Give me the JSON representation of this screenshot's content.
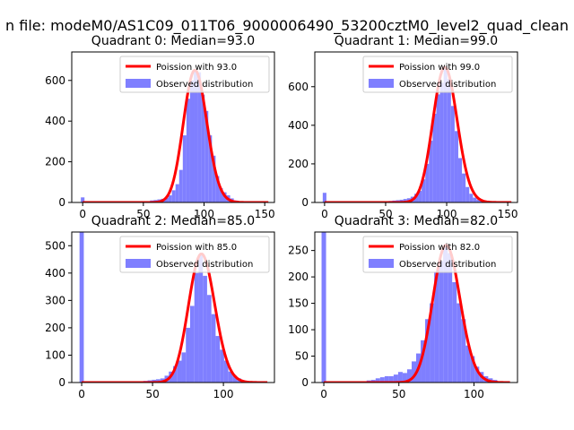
{
  "figure": {
    "suptitle": "n file: modeM0/AS1C09_011T06_9000006490_53200cztM0_level2_quad_clean"
  },
  "colors": {
    "poisson_line": "#ff0000",
    "histogram": "#7f7fff",
    "axis": "#000000",
    "background": "#ffffff"
  },
  "chart_data": [
    {
      "type": "histogram",
      "title": "Quadrant 0: Median=93.0",
      "median": 93.0,
      "xlim": [
        -9,
        158
      ],
      "ylim": [
        0,
        740
      ],
      "xticks": [
        0,
        50,
        100,
        150
      ],
      "yticks": [
        0,
        200,
        400,
        600
      ],
      "grid": false,
      "legend_position": "top-right",
      "legend": [
        {
          "label": "Poission with 93.0",
          "kind": "line"
        },
        {
          "label": "Observed distribution",
          "kind": "patch"
        }
      ],
      "spike": {
        "x": 0,
        "count": 25
      },
      "bin_width": 3,
      "bins": [
        {
          "x": 54,
          "count": 5
        },
        {
          "x": 57,
          "count": 10
        },
        {
          "x": 60,
          "count": 12
        },
        {
          "x": 63,
          "count": 15
        },
        {
          "x": 66,
          "count": 18
        },
        {
          "x": 69,
          "count": 22
        },
        {
          "x": 72,
          "count": 35
        },
        {
          "x": 75,
          "count": 60
        },
        {
          "x": 78,
          "count": 90
        },
        {
          "x": 81,
          "count": 160
        },
        {
          "x": 84,
          "count": 330
        },
        {
          "x": 87,
          "count": 510
        },
        {
          "x": 90,
          "count": 600
        },
        {
          "x": 93,
          "count": 650
        },
        {
          "x": 96,
          "count": 640
        },
        {
          "x": 99,
          "count": 530
        },
        {
          "x": 102,
          "count": 450
        },
        {
          "x": 105,
          "count": 330
        },
        {
          "x": 108,
          "count": 230
        },
        {
          "x": 111,
          "count": 130
        },
        {
          "x": 114,
          "count": 70
        },
        {
          "x": 117,
          "count": 50
        },
        {
          "x": 120,
          "count": 35
        },
        {
          "x": 123,
          "count": 20
        },
        {
          "x": 126,
          "count": 10
        },
        {
          "x": 129,
          "count": 6
        }
      ]
    },
    {
      "type": "histogram",
      "title": "Quadrant 1: Median=99.0",
      "median": 99.0,
      "xlim": [
        -8,
        158
      ],
      "ylim": [
        0,
        780
      ],
      "xticks": [
        0,
        50,
        100,
        150
      ],
      "yticks": [
        0,
        200,
        400,
        600
      ],
      "grid": false,
      "legend_position": "top-right",
      "legend": [
        {
          "label": "Poission with 99.0",
          "kind": "line"
        },
        {
          "label": "Observed distribution",
          "kind": "patch"
        }
      ],
      "spike": {
        "x": 0,
        "count": 50
      },
      "bin_width": 3,
      "bins": [
        {
          "x": 48,
          "count": 5
        },
        {
          "x": 51,
          "count": 6
        },
        {
          "x": 54,
          "count": 8
        },
        {
          "x": 57,
          "count": 10
        },
        {
          "x": 60,
          "count": 12
        },
        {
          "x": 63,
          "count": 14
        },
        {
          "x": 66,
          "count": 18
        },
        {
          "x": 69,
          "count": 22
        },
        {
          "x": 72,
          "count": 30
        },
        {
          "x": 75,
          "count": 45
        },
        {
          "x": 78,
          "count": 60
        },
        {
          "x": 81,
          "count": 120
        },
        {
          "x": 84,
          "count": 200
        },
        {
          "x": 87,
          "count": 320
        },
        {
          "x": 90,
          "count": 460
        },
        {
          "x": 93,
          "count": 560
        },
        {
          "x": 96,
          "count": 620
        },
        {
          "x": 99,
          "count": 700
        },
        {
          "x": 102,
          "count": 640
        },
        {
          "x": 105,
          "count": 500
        },
        {
          "x": 108,
          "count": 370
        },
        {
          "x": 111,
          "count": 230
        },
        {
          "x": 114,
          "count": 150
        },
        {
          "x": 117,
          "count": 80
        },
        {
          "x": 120,
          "count": 45
        },
        {
          "x": 123,
          "count": 25
        },
        {
          "x": 126,
          "count": 15
        },
        {
          "x": 129,
          "count": 10
        },
        {
          "x": 132,
          "count": 6
        }
      ]
    },
    {
      "type": "histogram",
      "title": "Quadrant 2: Median=85.0",
      "median": 85.0,
      "xlim": [
        -7,
        136
      ],
      "ylim": [
        0,
        550
      ],
      "xticks": [
        0,
        50,
        100
      ],
      "yticks": [
        0,
        100,
        200,
        300,
        400,
        500
      ],
      "grid": false,
      "legend_position": "top-right",
      "legend": [
        {
          "label": "Poission with 85.0",
          "kind": "line"
        },
        {
          "label": "Observed distribution",
          "kind": "patch"
        }
      ],
      "spike": {
        "x": 0,
        "count": 550
      },
      "bin_width": 3,
      "bins": [
        {
          "x": 45,
          "count": 6
        },
        {
          "x": 48,
          "count": 8
        },
        {
          "x": 51,
          "count": 10
        },
        {
          "x": 54,
          "count": 12
        },
        {
          "x": 57,
          "count": 15
        },
        {
          "x": 60,
          "count": 25
        },
        {
          "x": 63,
          "count": 40
        },
        {
          "x": 66,
          "count": 60
        },
        {
          "x": 69,
          "count": 80
        },
        {
          "x": 72,
          "count": 110
        },
        {
          "x": 75,
          "count": 200
        },
        {
          "x": 78,
          "count": 280
        },
        {
          "x": 81,
          "count": 400
        },
        {
          "x": 84,
          "count": 470
        },
        {
          "x": 87,
          "count": 390
        },
        {
          "x": 90,
          "count": 320
        },
        {
          "x": 93,
          "count": 250
        },
        {
          "x": 96,
          "count": 170
        },
        {
          "x": 99,
          "count": 120
        },
        {
          "x": 102,
          "count": 80
        },
        {
          "x": 105,
          "count": 40
        },
        {
          "x": 108,
          "count": 25
        },
        {
          "x": 111,
          "count": 15
        },
        {
          "x": 114,
          "count": 8
        }
      ]
    },
    {
      "type": "histogram",
      "title": "Quadrant 3: Median=82.0",
      "median": 82.0,
      "xlim": [
        -6,
        129
      ],
      "ylim": [
        0,
        285
      ],
      "xticks": [
        0,
        50,
        100
      ],
      "yticks": [
        0,
        50,
        100,
        150,
        200,
        250
      ],
      "grid": false,
      "legend_position": "top-right",
      "legend": [
        {
          "label": "Poission with 82.0",
          "kind": "line"
        },
        {
          "label": "Observed distribution",
          "kind": "patch"
        }
      ],
      "spike": {
        "x": 0,
        "count": 285
      },
      "bin_width": 3,
      "bins": [
        {
          "x": 30,
          "count": 4
        },
        {
          "x": 33,
          "count": 5
        },
        {
          "x": 36,
          "count": 8
        },
        {
          "x": 39,
          "count": 10
        },
        {
          "x": 42,
          "count": 12
        },
        {
          "x": 45,
          "count": 12
        },
        {
          "x": 48,
          "count": 15
        },
        {
          "x": 51,
          "count": 20
        },
        {
          "x": 54,
          "count": 18
        },
        {
          "x": 57,
          "count": 25
        },
        {
          "x": 60,
          "count": 40
        },
        {
          "x": 63,
          "count": 55
        },
        {
          "x": 66,
          "count": 80
        },
        {
          "x": 69,
          "count": 120
        },
        {
          "x": 72,
          "count": 150
        },
        {
          "x": 75,
          "count": 210
        },
        {
          "x": 78,
          "count": 230
        },
        {
          "x": 81,
          "count": 260
        },
        {
          "x": 84,
          "count": 245
        },
        {
          "x": 87,
          "count": 190
        },
        {
          "x": 90,
          "count": 150
        },
        {
          "x": 93,
          "count": 120
        },
        {
          "x": 96,
          "count": 70
        },
        {
          "x": 99,
          "count": 50
        },
        {
          "x": 102,
          "count": 30
        },
        {
          "x": 105,
          "count": 20
        },
        {
          "x": 108,
          "count": 12
        },
        {
          "x": 111,
          "count": 8
        },
        {
          "x": 114,
          "count": 5
        }
      ]
    }
  ]
}
